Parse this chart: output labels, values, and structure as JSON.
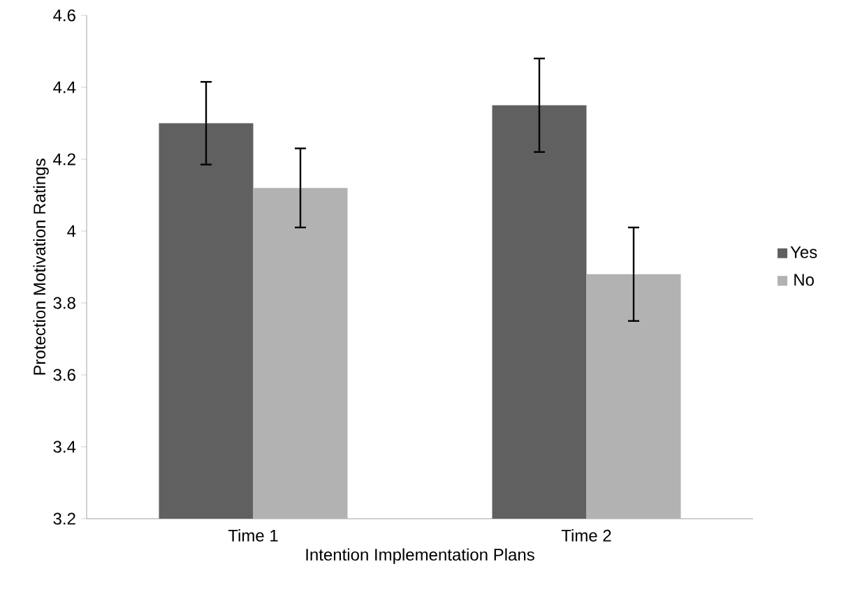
{
  "chart_data": {
    "type": "bar",
    "xlabel": "Intention Implementation Plans",
    "ylabel": "Protection Motivation Ratings",
    "categories": [
      "Time 1",
      "Time 2"
    ],
    "series": [
      {
        "name": "Yes",
        "color": "#606060",
        "values": [
          4.3,
          4.35
        ],
        "errors": [
          0.115,
          0.13
        ]
      },
      {
        "name": "No",
        "color": "#b2b2b2",
        "values": [
          4.12,
          3.88
        ],
        "errors": [
          0.11,
          0.13
        ]
      }
    ],
    "ylim": [
      3.2,
      4.6
    ],
    "yticks": [
      3.2,
      3.4,
      3.6,
      3.8,
      4,
      4.2,
      4.4,
      4.6
    ],
    "legend": "right"
  }
}
